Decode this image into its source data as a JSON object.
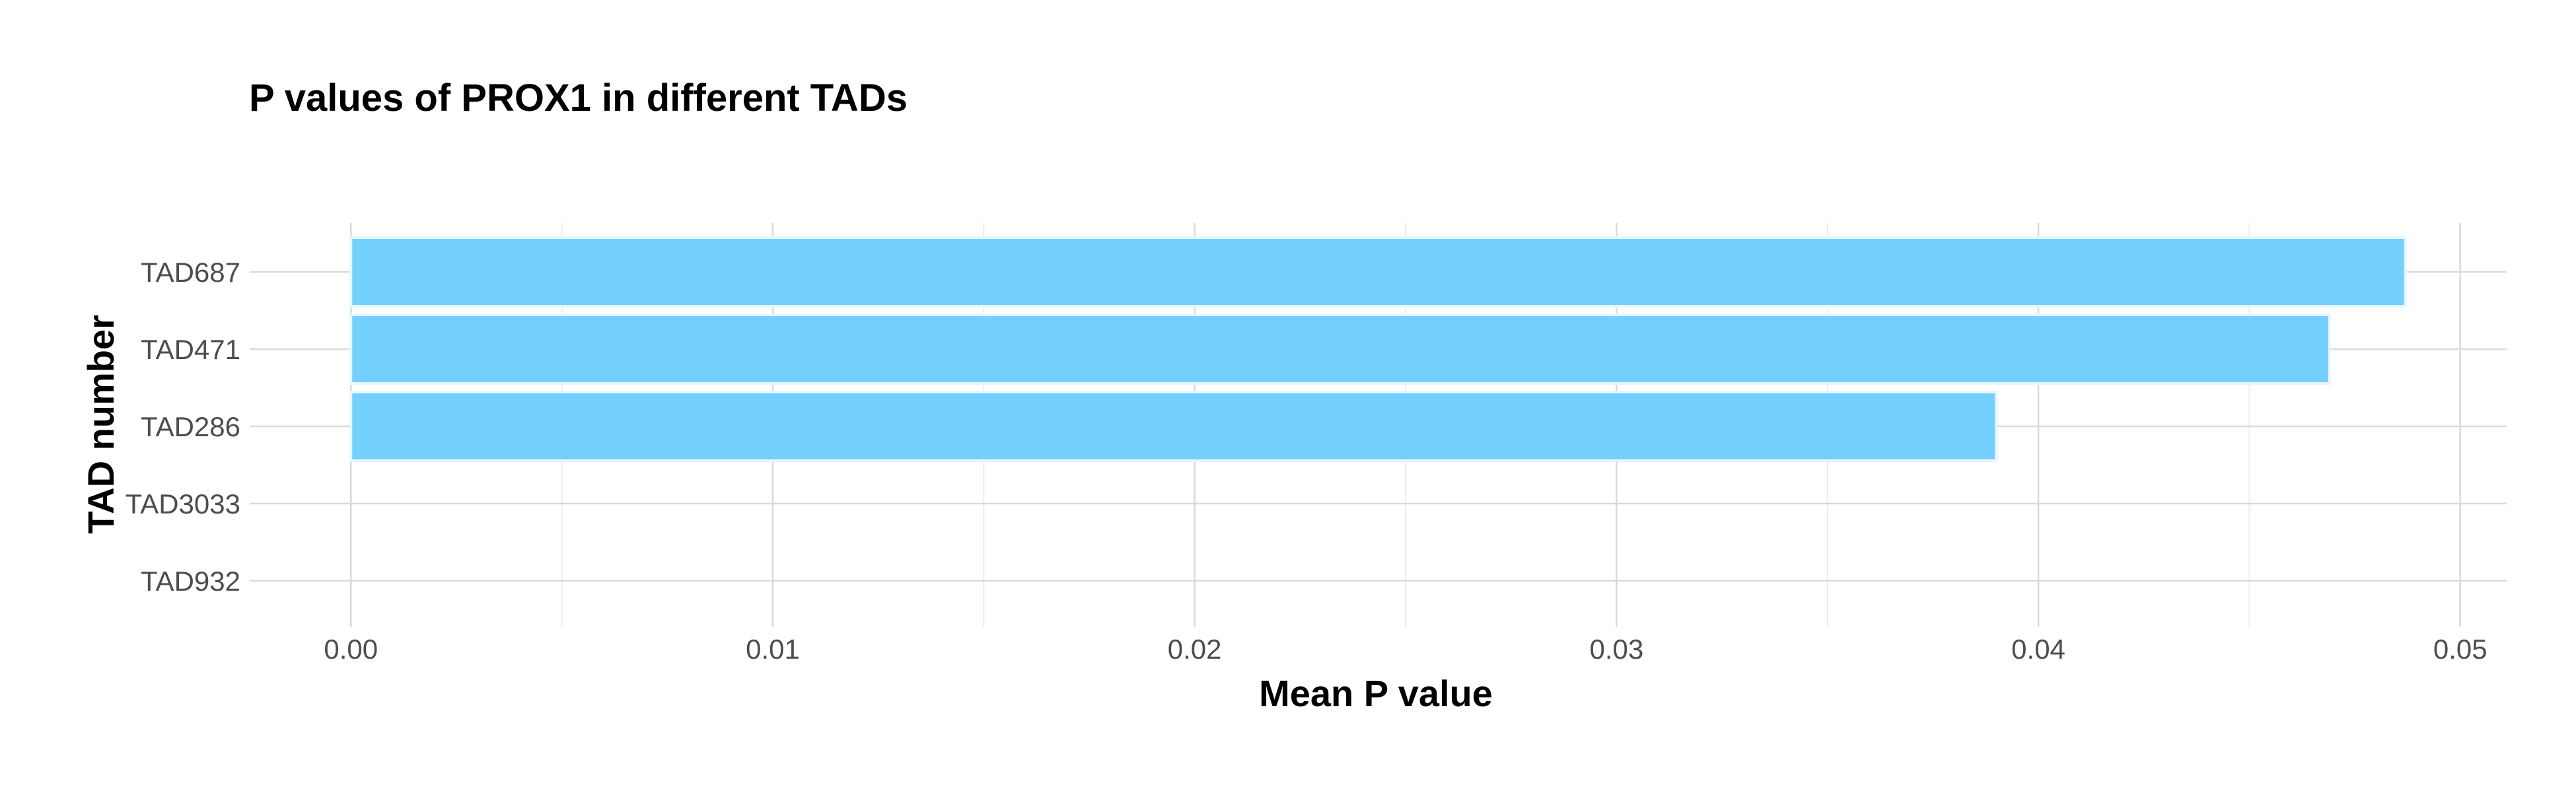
{
  "chart_data": {
    "type": "bar",
    "orientation": "horizontal",
    "title": "P values of PROX1 in different TADs",
    "xlabel": "Mean P value",
    "ylabel": "TAD number",
    "categories": [
      "TAD687",
      "TAD471",
      "TAD286",
      "TAD3033",
      "TAD932"
    ],
    "values": [
      0.0487,
      0.0469,
      0.039,
      0.0,
      0.0
    ],
    "xlim": [
      -0.0024,
      0.0511
    ],
    "x_ticks": [
      0.0,
      0.01,
      0.02,
      0.03,
      0.04,
      0.05
    ],
    "x_tick_labels": [
      "0.00",
      "0.01",
      "0.02",
      "0.03",
      "0.04",
      "0.05"
    ],
    "grid": true,
    "legend": "none",
    "bar_color": "#74cffc",
    "bar_edge_color": "#e6f5fe"
  }
}
